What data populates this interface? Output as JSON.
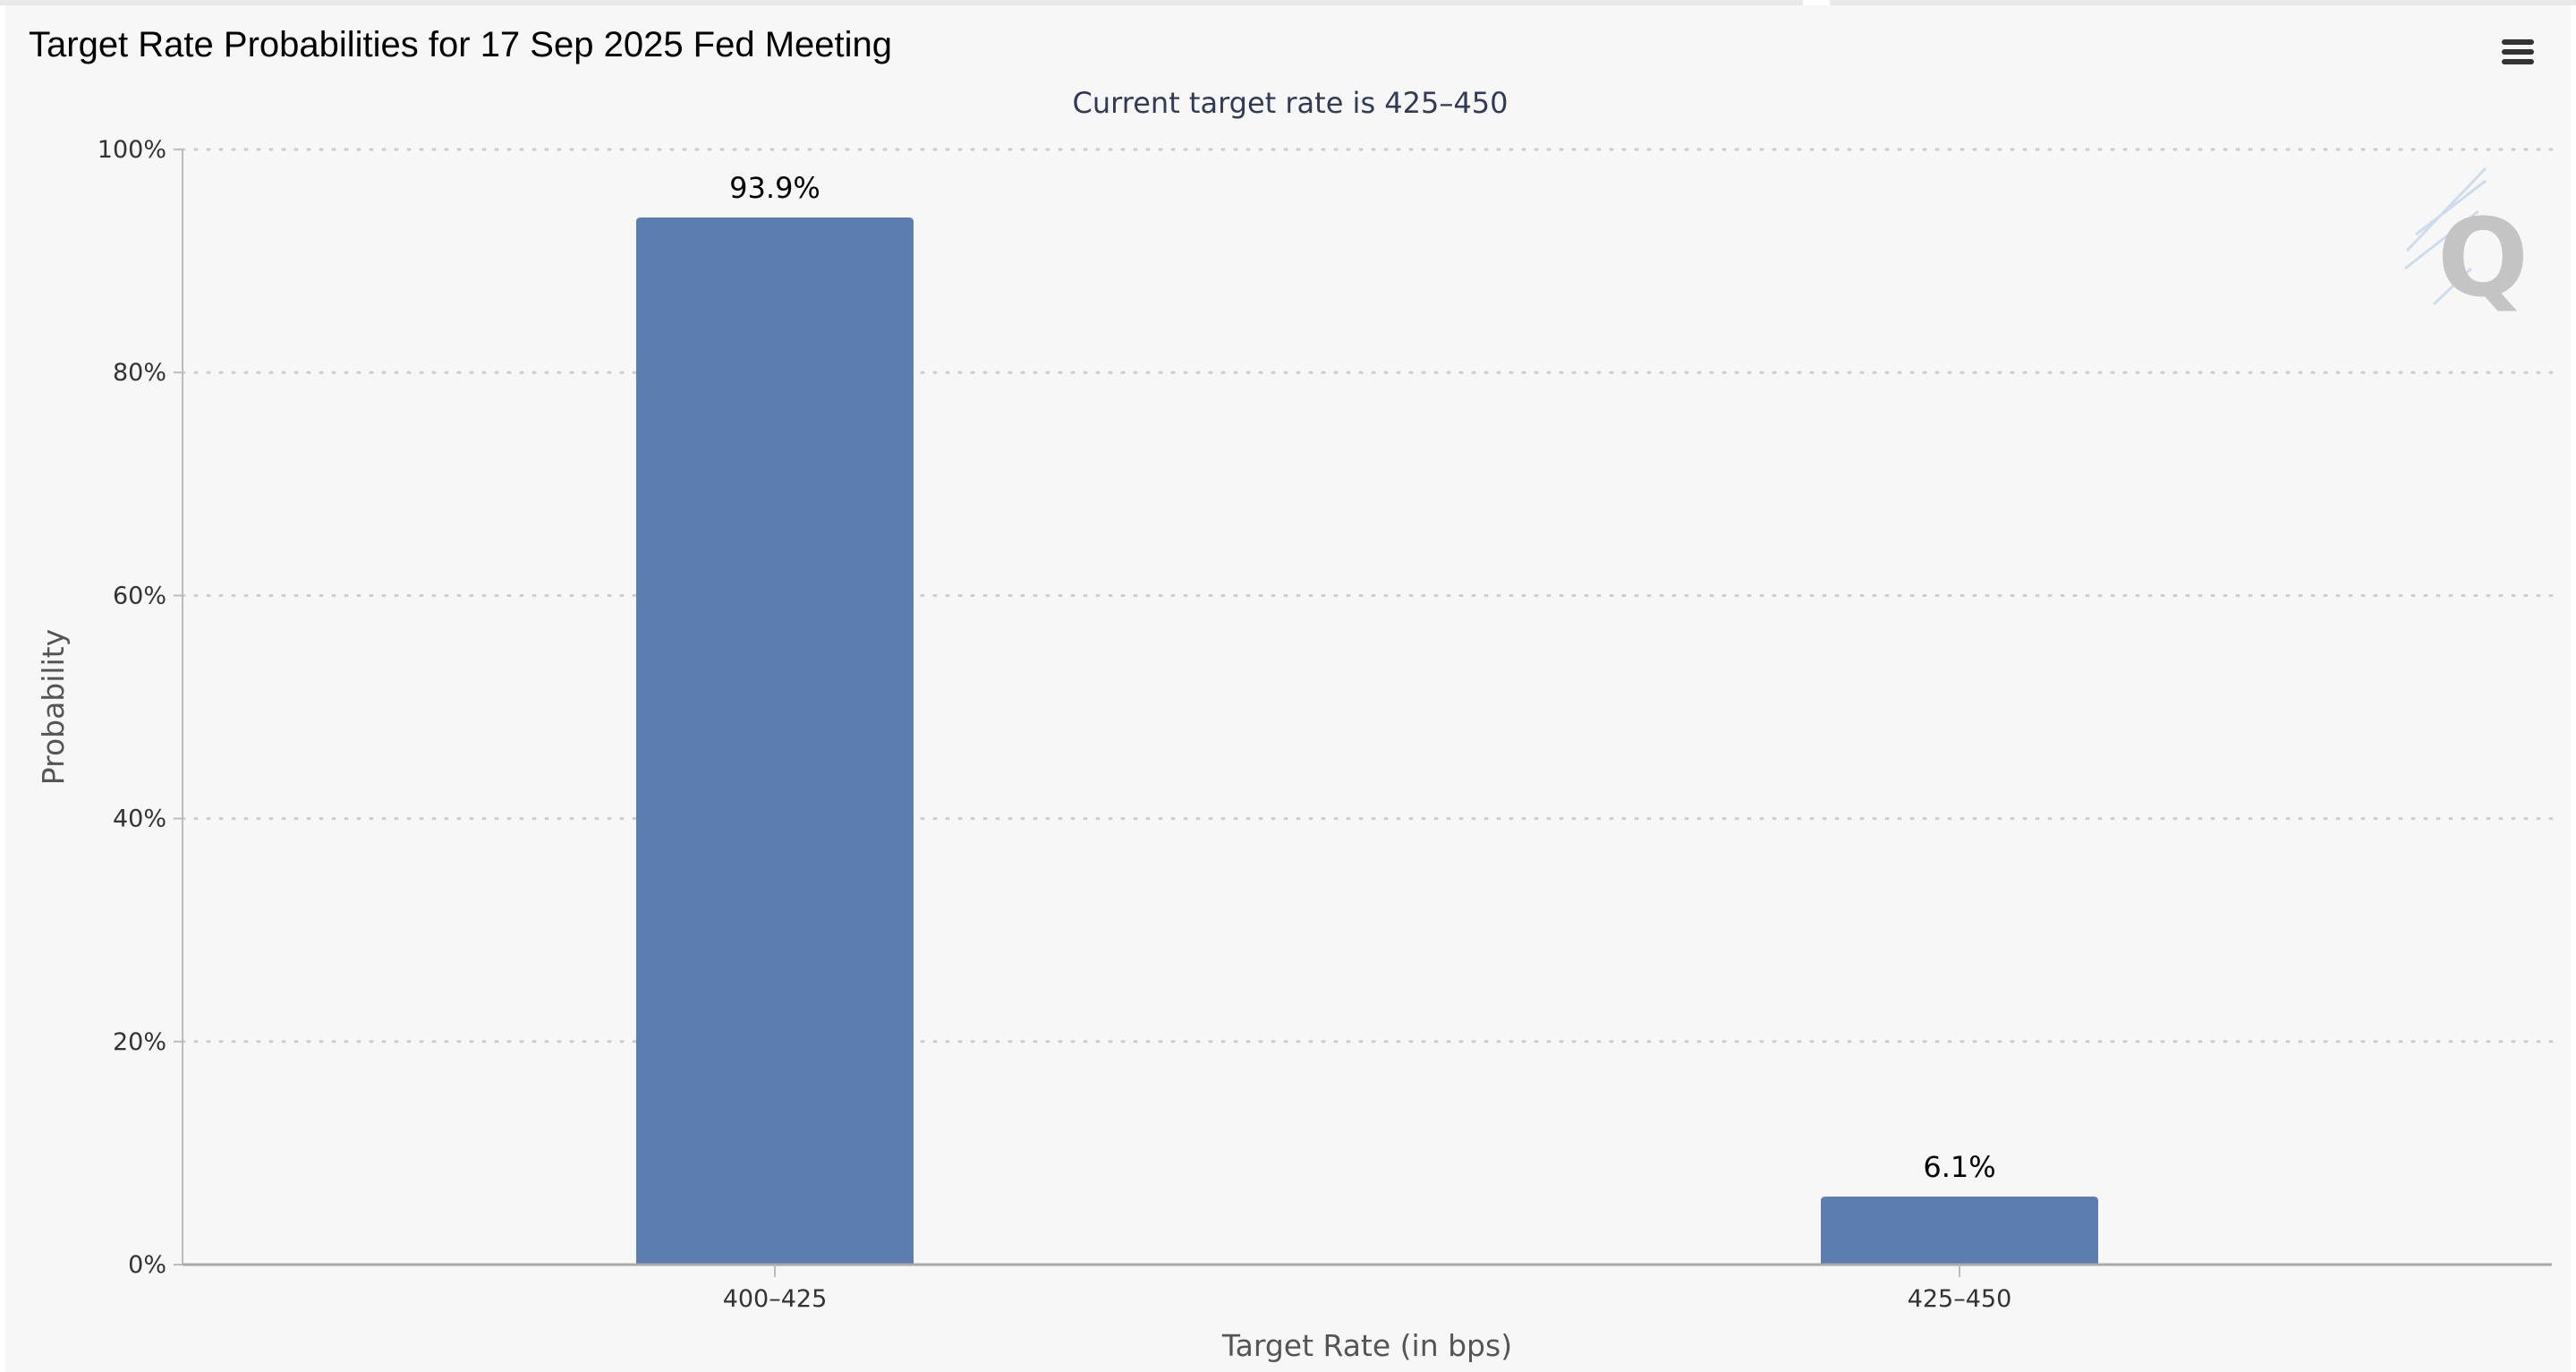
{
  "header": {
    "title": "Target Rate Probabilities for 17 Sep 2025 Fed Meeting",
    "menu_icon": "hamburger-menu-icon"
  },
  "watermark": {
    "text": "Q",
    "icon": "quikstrike-logo-icon"
  },
  "colors": {
    "bar": "#5b7db0",
    "background": "#f7f7f7",
    "gridline": "#cccccc"
  },
  "chart_data": {
    "type": "bar",
    "title": "Target Rate Probabilities for 17 Sep 2025 Fed Meeting",
    "subtitle": "Current target rate is 425–450",
    "categories": [
      "400–425",
      "425–450"
    ],
    "values": [
      93.9,
      6.1
    ],
    "data_labels": [
      "93.9%",
      "6.1%"
    ],
    "xlabel": "Target Rate (in bps)",
    "ylabel": "Probability",
    "ylim": [
      0,
      100
    ],
    "yticks": [
      0,
      20,
      40,
      60,
      80,
      100
    ],
    "ytick_labels": [
      "0%",
      "20%",
      "40%",
      "60%",
      "80%",
      "100%"
    ],
    "grid": true,
    "legend": "none"
  }
}
